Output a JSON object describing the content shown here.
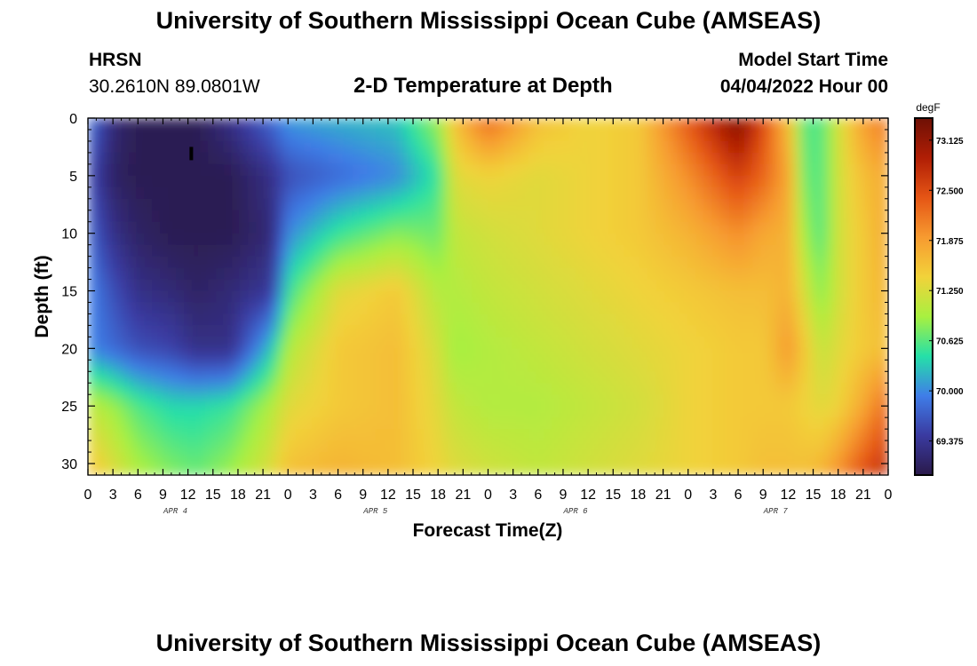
{
  "header": {
    "title": "University of Southern Mississippi Ocean Cube (AMSEAS)",
    "station": "HRSN",
    "coords": "30.2610N  89.0801W",
    "plot_title": "2-D Temperature at Depth",
    "model_start_label": "Model Start Time",
    "model_start_value": "04/04/2022 Hour 00"
  },
  "footer": {
    "title": "University of Southern Mississippi Ocean Cube (AMSEAS)"
  },
  "chart_data": {
    "type": "heatmap",
    "title": "2-D Temperature at Depth",
    "xlabel": "Forecast Time(Z)",
    "ylabel": "Depth (ft)",
    "x_tick_labels": [
      "0",
      "3",
      "6",
      "9",
      "12",
      "15",
      "18",
      "21",
      "0",
      "3",
      "6",
      "9",
      "12",
      "15",
      "18",
      "21",
      "0",
      "3",
      "6",
      "9",
      "12",
      "15",
      "18",
      "21",
      "0",
      "3",
      "6",
      "9",
      "12",
      "15",
      "18",
      "21",
      "0"
    ],
    "x_range_hours": [
      0,
      96
    ],
    "day_labels": [
      "APR 4",
      "APR 5",
      "APR 6",
      "APR 7"
    ],
    "y_ticks": [
      0,
      5,
      10,
      15,
      20,
      25,
      30
    ],
    "y_range": [
      0,
      31
    ],
    "colorbar": {
      "unit": "degF",
      "ticks": [
        69.375,
        70.0,
        70.625,
        71.25,
        71.875,
        72.5,
        73.125
      ],
      "tick_labels": [
        "69.375",
        "70.000",
        "70.625",
        "71.250",
        "71.875",
        "72.500",
        "73.125"
      ],
      "range": [
        68.95,
        73.4
      ],
      "colors": [
        "#2a1a4a",
        "#3a3aa0",
        "#3f7de8",
        "#25e0a8",
        "#a8f040",
        "#f2d23a",
        "#f79a30",
        "#e55515",
        "#b01e05",
        "#6e1005"
      ]
    },
    "depths": [
      0,
      5,
      10,
      15,
      20,
      25,
      31
    ],
    "times": [
      0,
      3,
      6,
      10,
      13,
      17,
      22,
      24,
      30,
      37,
      42,
      44,
      48,
      54,
      60,
      66,
      72,
      78,
      81,
      84,
      86,
      88,
      90,
      93,
      96
    ],
    "values": [
      [
        69.9,
        69.2,
        69.0,
        69.0,
        69.0,
        69.3,
        69.8,
        70.1,
        70.2,
        70.3,
        70.9,
        71.6,
        72.3,
        71.6,
        71.4,
        71.5,
        72.4,
        73.3,
        72.5,
        71.6,
        70.6,
        70.6,
        71.2,
        71.9,
        72.2
      ],
      [
        69.6,
        69.1,
        69.0,
        69.0,
        69.0,
        69.0,
        69.3,
        69.6,
        69.8,
        70.0,
        70.5,
        71.3,
        71.4,
        71.3,
        71.4,
        71.5,
        72.0,
        72.6,
        72.3,
        71.8,
        70.7,
        70.6,
        71.2,
        71.6,
        71.8
      ],
      [
        69.8,
        69.3,
        69.1,
        69.0,
        69.0,
        69.0,
        69.2,
        70.0,
        70.5,
        70.8,
        70.7,
        71.1,
        71.2,
        71.3,
        71.4,
        71.5,
        71.7,
        72.0,
        71.8,
        71.7,
        70.9,
        70.6,
        71.2,
        71.5,
        71.8
      ],
      [
        70.0,
        69.6,
        69.3,
        69.2,
        69.1,
        69.2,
        69.4,
        70.5,
        71.3,
        71.5,
        71.0,
        71.0,
        71.1,
        71.2,
        71.3,
        71.4,
        71.5,
        71.6,
        71.6,
        71.7,
        71.2,
        70.8,
        71.2,
        71.5,
        71.7
      ],
      [
        70.0,
        69.8,
        69.6,
        69.5,
        69.3,
        69.3,
        70.3,
        71.0,
        71.5,
        71.6,
        71.2,
        70.9,
        71.0,
        71.1,
        71.2,
        71.3,
        71.4,
        71.5,
        71.5,
        71.9,
        71.5,
        71.1,
        71.3,
        71.5,
        71.6
      ],
      [
        71.1,
        70.9,
        70.6,
        70.4,
        70.4,
        70.5,
        71.0,
        71.3,
        71.5,
        71.6,
        71.3,
        71.1,
        71.0,
        71.0,
        71.1,
        71.2,
        71.4,
        71.5,
        71.5,
        71.5,
        71.4,
        71.3,
        71.4,
        71.8,
        72.3
      ],
      [
        71.6,
        71.3,
        71.0,
        70.8,
        70.7,
        70.9,
        71.3,
        71.6,
        71.7,
        71.6,
        71.4,
        71.3,
        71.2,
        71.1,
        71.2,
        71.3,
        71.4,
        71.5,
        71.6,
        71.6,
        71.6,
        71.7,
        72.0,
        72.5,
        72.8
      ]
    ]
  }
}
